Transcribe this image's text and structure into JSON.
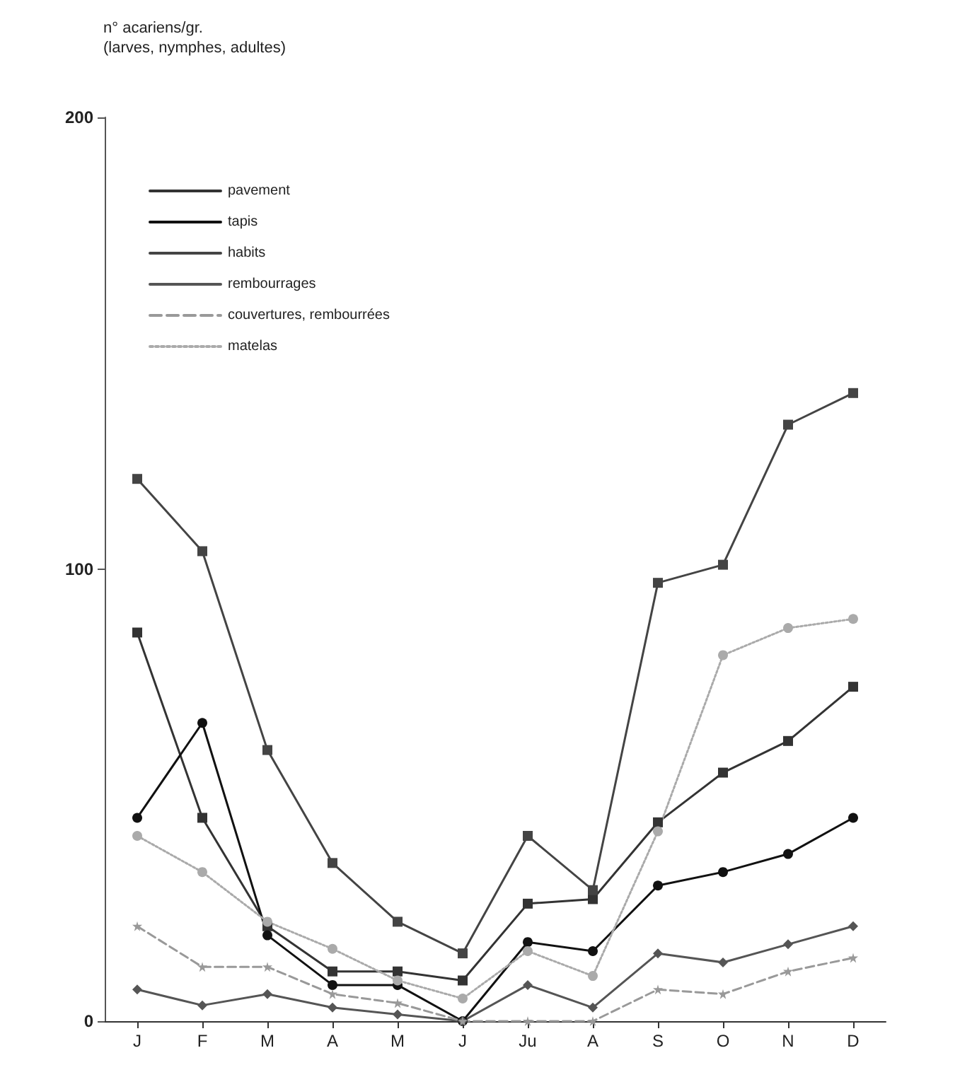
{
  "chart_data": {
    "type": "line",
    "ylabel": "n° acariens/gr.\n(larves, nymphes, adultes)",
    "categories": [
      "J",
      "F",
      "M",
      "A",
      "M",
      "J",
      "Ju",
      "A",
      "S",
      "O",
      "N",
      "D"
    ],
    "ylim": [
      0,
      200
    ],
    "yticks": [
      0,
      100,
      200
    ],
    "grid": false,
    "legend": "top left",
    "series": [
      {
        "name": "pavement",
        "color": "#333333",
        "marker": "square",
        "line_style": "solid",
        "values": [
          86,
          45,
          21,
          11,
          11,
          9,
          26,
          27,
          44,
          55,
          62,
          74
        ]
      },
      {
        "name": "tapis",
        "color": "#111111",
        "marker": "circle",
        "line_style": "solid",
        "values": [
          45,
          66,
          19,
          8,
          8,
          0,
          17.5,
          15.5,
          30,
          33,
          37,
          45
        ]
      },
      {
        "name": "habits",
        "color": "#444444",
        "marker": "square",
        "line_style": "solid",
        "values": [
          120,
          104,
          60,
          35,
          22,
          15,
          41,
          29,
          97,
          101,
          132,
          139
        ]
      },
      {
        "name": "rembourrages",
        "color": "#555555",
        "marker": "diamond",
        "line_style": "solid",
        "values": [
          7,
          3.5,
          6,
          3,
          1.5,
          0,
          8,
          3,
          15,
          13,
          17,
          21
        ]
      },
      {
        "name": "couvertures, rembourrées",
        "color": "#999999",
        "marker": "star",
        "line_style": "dashed",
        "values": [
          21,
          12,
          12,
          6,
          4,
          0,
          0,
          0,
          7,
          6,
          11,
          14
        ]
      },
      {
        "name": "matelas",
        "color": "#aaaaaa",
        "marker": "circle",
        "line_style": "dotted",
        "values": [
          41,
          33,
          22,
          16,
          9,
          5,
          15.5,
          10,
          42,
          81,
          87,
          89
        ]
      }
    ]
  }
}
